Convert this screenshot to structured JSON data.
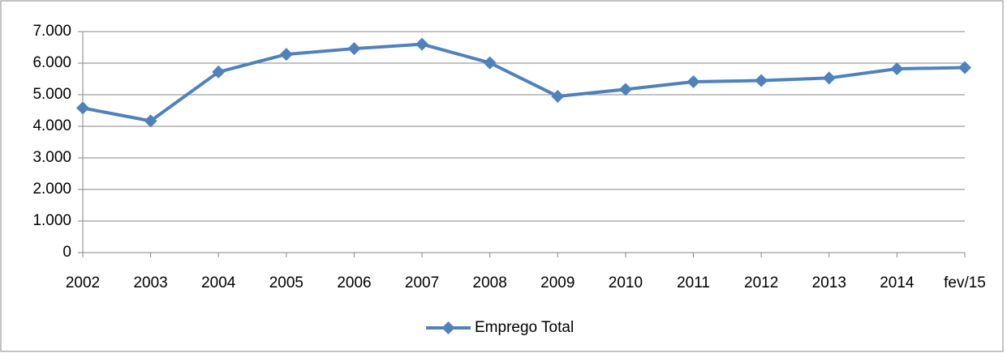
{
  "chart_data": {
    "type": "line",
    "categories": [
      "2002",
      "2003",
      "2004",
      "2005",
      "2006",
      "2007",
      "2008",
      "2009",
      "2010",
      "2011",
      "2012",
      "2013",
      "2014",
      "fev/15"
    ],
    "series": [
      {
        "name": "Emprego Total",
        "color": "#4f81bd",
        "values": [
          4580,
          4170,
          5720,
          6280,
          6460,
          6600,
          6010,
          4950,
          5170,
          5410,
          5450,
          5530,
          5820,
          5860
        ]
      }
    ],
    "ylim": [
      0,
      7000
    ],
    "yticks": [
      0,
      {
        "value": 1000,
        "label": "1.000"
      },
      {
        "value": 2000,
        "label": "2.000"
      },
      {
        "value": 3000,
        "label": "3.000"
      },
      {
        "value": 4000,
        "label": "4.000"
      },
      {
        "value": 5000,
        "label": "5.000"
      },
      {
        "value": 6000,
        "label": "6.000"
      },
      {
        "value": 7000,
        "label": "7.000"
      }
    ],
    "grid": true,
    "legend": "bottom"
  }
}
